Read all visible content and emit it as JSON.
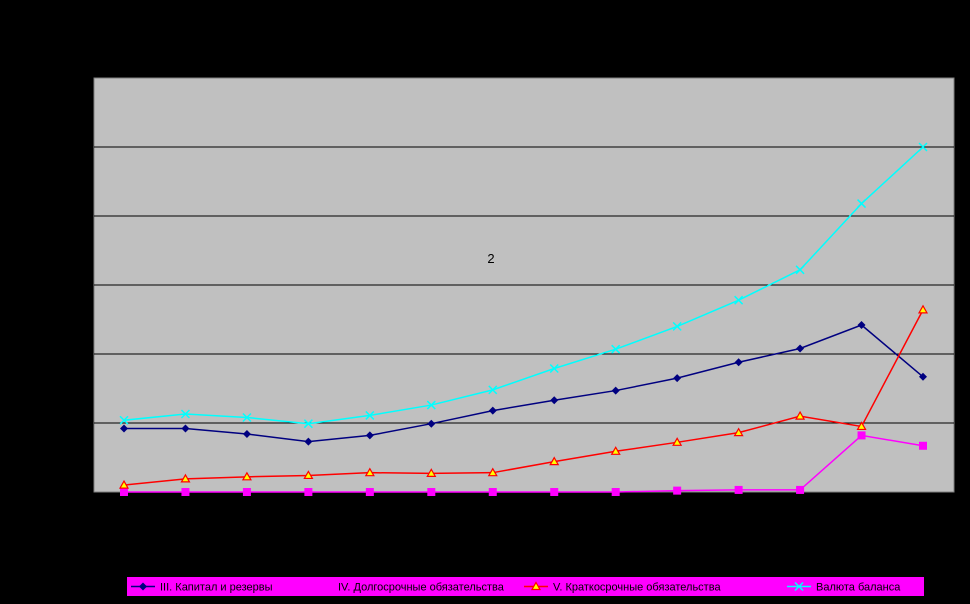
{
  "chart_data": {
    "type": "line",
    "title": "",
    "xlabel": "",
    "ylabel": "",
    "annotation": "2",
    "grid": true,
    "legend_position": "bottom",
    "ylim": [
      0,
      6
    ],
    "x": [
      1,
      2,
      3,
      4,
      5,
      6,
      7,
      8,
      9,
      10,
      11,
      12,
      13,
      14
    ],
    "colors": {
      "plot_background": "#C0C0C0",
      "legend_background": "#FF00FF",
      "gridline": "#000000"
    },
    "series": [
      {
        "name": "III. Капитал и резервы",
        "color": "#000080",
        "marker": "diamond",
        "values": [
          0.92,
          0.92,
          0.84,
          0.73,
          0.82,
          0.99,
          1.18,
          1.33,
          1.47,
          1.65,
          1.88,
          2.08,
          2.42,
          1.67
        ]
      },
      {
        "name": "IV. Долгосрочные обязательства",
        "color": "#FF00FF",
        "marker": "square",
        "values": [
          0.0,
          0.0,
          0.0,
          0.0,
          0.0,
          0.0,
          0.0,
          0.0,
          0.0,
          0.02,
          0.03,
          0.03,
          0.82,
          0.67
        ]
      },
      {
        "name": "V. Краткосрочные обязательства",
        "color": "#FF0000",
        "marker": "triangle",
        "values": [
          0.1,
          0.19,
          0.22,
          0.24,
          0.28,
          0.27,
          0.28,
          0.44,
          0.59,
          0.72,
          0.86,
          1.1,
          0.95,
          2.64
        ]
      },
      {
        "name": "Валюта баланса",
        "color": "#00FFFF",
        "marker": "x",
        "values": [
          1.04,
          1.13,
          1.08,
          0.99,
          1.11,
          1.26,
          1.48,
          1.79,
          2.07,
          2.4,
          2.78,
          3.22,
          4.18,
          5.0
        ]
      }
    ]
  }
}
